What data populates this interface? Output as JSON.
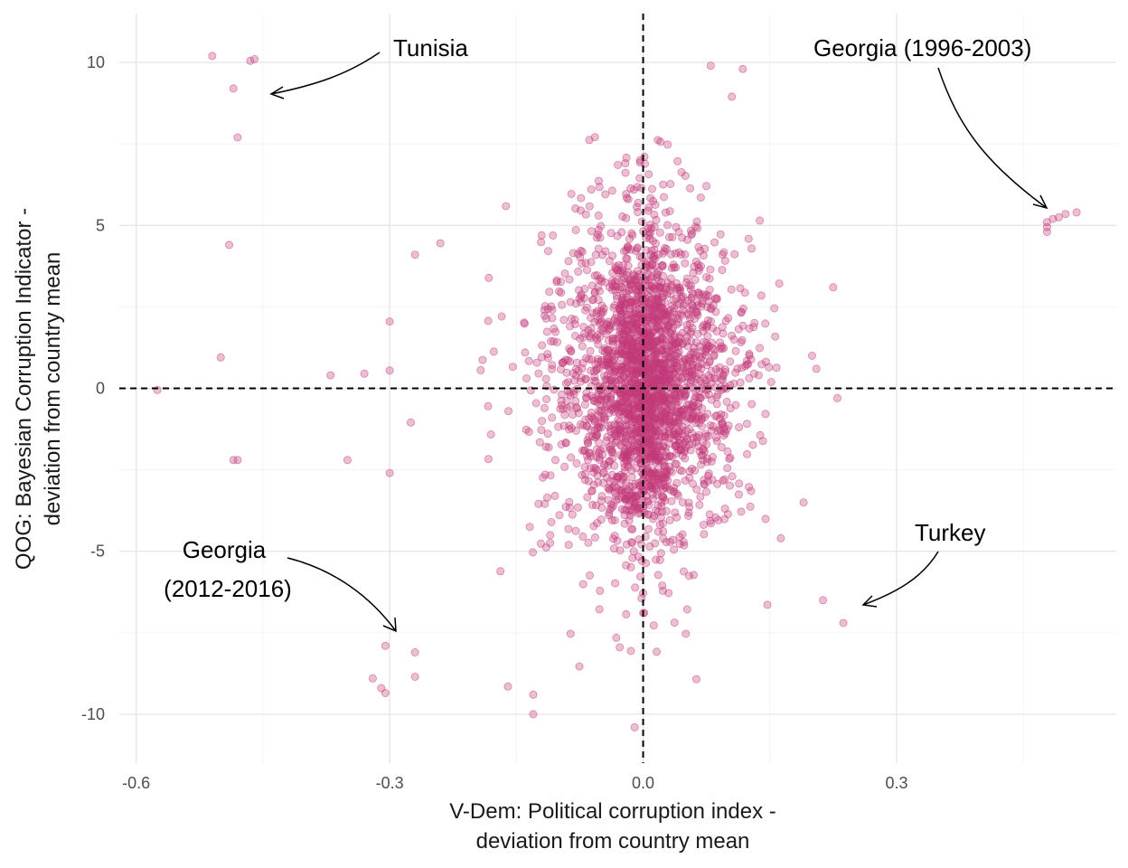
{
  "chart_data": {
    "type": "scatter",
    "xlabel": [
      "V-Dem: Political corruption index -",
      "deviation from country mean"
    ],
    "ylabel": [
      "QOG: Bayesian Corruption Indicator -",
      "deviation from country mean"
    ],
    "xlim": [
      -0.62,
      0.56
    ],
    "ylim": [
      -11.5,
      11.5
    ],
    "x_ticks": [
      -0.6,
      -0.3,
      0.0,
      0.3
    ],
    "x_tick_labels": [
      "-0.6",
      "-0.3",
      "0.0",
      "0.3"
    ],
    "y_ticks": [
      -10,
      -5,
      0,
      5,
      10
    ],
    "y_tick_labels": [
      "-10",
      "-5",
      "0",
      "5",
      "10"
    ],
    "grid": true,
    "point_color": "#c23b7a",
    "reference_lines": {
      "x": 0,
      "y": 0,
      "style": "dashed"
    },
    "annotations": [
      {
        "lines": [
          "Tunisia"
        ],
        "target": [
          -0.45,
          9.1
        ]
      },
      {
        "lines": [
          "Georgia (1996-2003)"
        ],
        "target": [
          0.48,
          5.5
        ]
      },
      {
        "lines": [
          "Georgia",
          "(2012-2016)"
        ],
        "target": [
          -0.295,
          -7.5
        ]
      },
      {
        "lines": [
          "Turkey"
        ],
        "target": [
          0.26,
          -6.8
        ]
      }
    ],
    "highlighted_points": [
      [
        -0.51,
        10.2
      ],
      [
        -0.46,
        10.1
      ],
      [
        -0.465,
        10.05
      ],
      [
        -0.485,
        9.2
      ],
      [
        -0.48,
        7.7
      ],
      [
        -0.49,
        4.4
      ],
      [
        -0.5,
        0.95
      ],
      [
        -0.48,
        -2.2
      ],
      [
        -0.485,
        -2.2
      ],
      [
        -0.575,
        -0.05
      ],
      [
        0.08,
        9.9
      ],
      [
        0.118,
        9.8
      ],
      [
        0.105,
        8.95
      ],
      [
        0.478,
        5.1
      ],
      [
        0.478,
        4.95
      ],
      [
        0.478,
        4.8
      ],
      [
        0.485,
        5.2
      ],
      [
        0.492,
        5.25
      ],
      [
        0.5,
        5.35
      ],
      [
        0.513,
        5.4
      ],
      [
        -0.305,
        -7.9
      ],
      [
        -0.32,
        -8.9
      ],
      [
        -0.31,
        -9.2
      ],
      [
        -0.305,
        -9.35
      ],
      [
        -0.27,
        -8.1
      ],
      [
        -0.27,
        -8.85
      ],
      [
        -0.3,
        -2.6
      ],
      [
        0.213,
        -6.5
      ],
      [
        0.237,
        -7.2
      ],
      [
        0.225,
        3.1
      ],
      [
        0.2,
        1.0
      ],
      [
        0.205,
        0.6
      ],
      [
        0.23,
        -0.3
      ],
      [
        0.19,
        -3.5
      ],
      [
        0.163,
        -4.6
      ],
      [
        -0.13,
        -10.0
      ],
      [
        -0.13,
        -9.4
      ],
      [
        -0.16,
        -9.15
      ],
      [
        -0.01,
        -10.4
      ],
      [
        -0.3,
        2.05
      ],
      [
        -0.3,
        0.55
      ],
      [
        -0.37,
        0.4
      ],
      [
        -0.33,
        0.45
      ],
      [
        -0.35,
        -2.2
      ],
      [
        -0.27,
        4.1
      ],
      [
        -0.24,
        4.45
      ],
      [
        -0.275,
        -1.05
      ]
    ],
    "cloud": {
      "n": 2600,
      "center": [
        0.005,
        0.2
      ],
      "sd": [
        0.052,
        2.2
      ],
      "x_range": [
        -0.23,
        0.165
      ],
      "y_range": [
        -9.2,
        7.9
      ]
    }
  }
}
